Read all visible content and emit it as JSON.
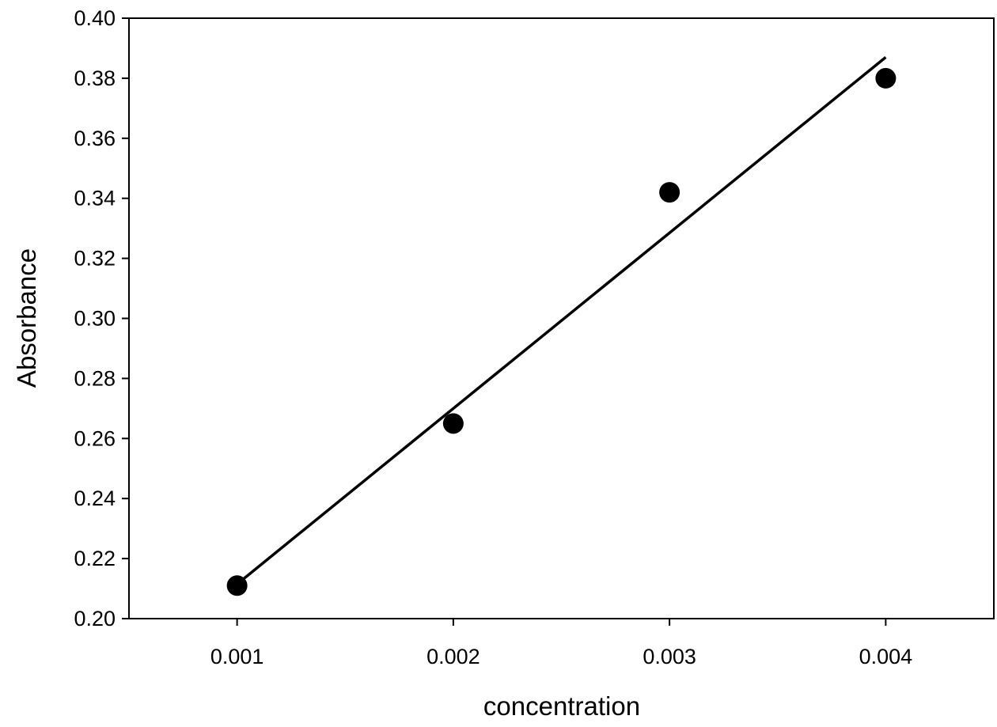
{
  "chart_data": {
    "type": "scatter",
    "title": "",
    "xlabel": "concentration",
    "ylabel": "Absorbance",
    "xlim": [
      0.0005,
      0.0045
    ],
    "ylim": [
      0.2,
      0.4
    ],
    "x_ticks": [
      "0.001",
      "0.002",
      "0.003",
      "0.004"
    ],
    "y_ticks": [
      "0.20",
      "0.22",
      "0.24",
      "0.26",
      "0.28",
      "0.30",
      "0.32",
      "0.34",
      "0.36",
      "0.38",
      "0.40"
    ],
    "grid": false,
    "legend": "none",
    "series": [
      {
        "marker": "filled-circle",
        "color": "#000000",
        "x": [
          0.001,
          0.002,
          0.003,
          0.004
        ],
        "y": [
          0.211,
          0.265,
          0.342,
          0.38
        ]
      }
    ],
    "fit_line": {
      "type": "linear",
      "color": "#000000",
      "x": [
        0.001,
        0.004
      ],
      "y": [
        0.2115,
        0.387
      ]
    }
  }
}
